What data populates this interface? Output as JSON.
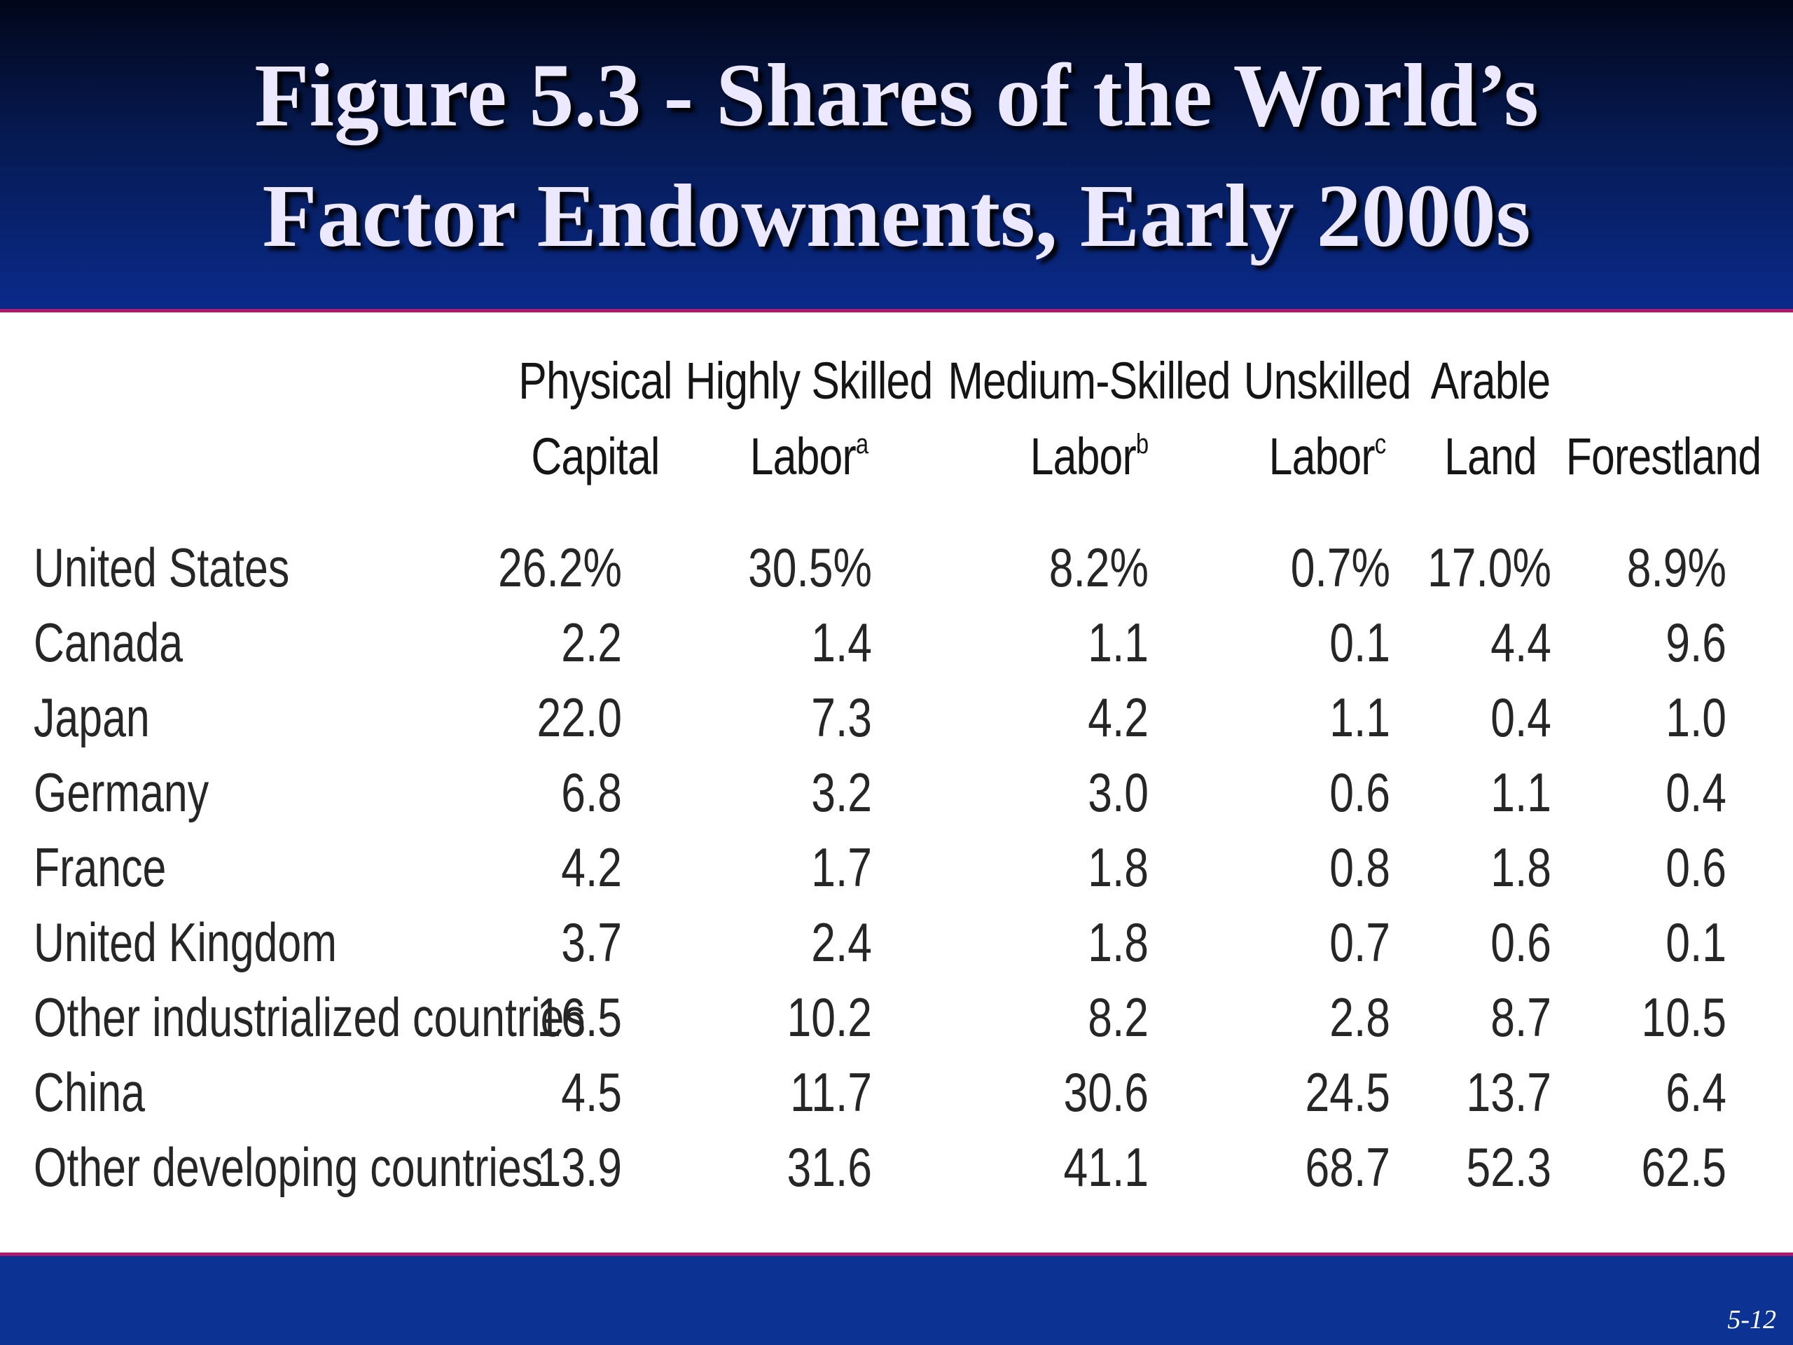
{
  "slide": {
    "title_line1": "Figure 5.3 - Shares of the World’s",
    "title_line2": "Factor Endowments, Early 2000s",
    "slide_number": "5-12"
  },
  "table": {
    "columns": [
      {
        "line1": "Physical",
        "line2": "Capital",
        "note": ""
      },
      {
        "line1": "Highly Skilled",
        "line2": "Labor",
        "note": "a"
      },
      {
        "line1": "Medium-Skilled",
        "line2": "Labor",
        "note": "b"
      },
      {
        "line1": "Unskilled",
        "line2": "Labor",
        "note": "c"
      },
      {
        "line1": "Arable",
        "line2": "Land",
        "note": ""
      },
      {
        "line1": "",
        "line2": "Forestland",
        "note": ""
      }
    ],
    "rows": [
      {
        "label": "United States",
        "values": [
          "26.2%",
          "30.5%",
          "8.2%",
          "0.7%",
          "17.0%",
          "8.9%"
        ]
      },
      {
        "label": "Canada",
        "values": [
          "2.2",
          "1.4",
          "1.1",
          "0.1",
          "4.4",
          "9.6"
        ]
      },
      {
        "label": "Japan",
        "values": [
          "22.0",
          "7.3",
          "4.2",
          "1.1",
          "0.4",
          "1.0"
        ]
      },
      {
        "label": "Germany",
        "values": [
          "6.8",
          "3.2",
          "3.0",
          "0.6",
          "1.1",
          "0.4"
        ]
      },
      {
        "label": "France",
        "values": [
          "4.2",
          "1.7",
          "1.8",
          "0.8",
          "1.8",
          "0.6"
        ]
      },
      {
        "label": "United Kingdom",
        "values": [
          "3.7",
          "2.4",
          "1.8",
          "0.7",
          "0.6",
          "0.1"
        ]
      },
      {
        "label": "Other industrialized countries",
        "values": [
          "16.5",
          "10.2",
          "8.2",
          "2.8",
          "8.7",
          "10.5"
        ]
      },
      {
        "label": "China",
        "values": [
          "4.5",
          "11.7",
          "30.6",
          "24.5",
          "13.7",
          "6.4"
        ]
      },
      {
        "label": "Other developing countries",
        "values": [
          "13.9",
          "31.6",
          "41.1",
          "68.7",
          "52.3",
          "62.5"
        ]
      }
    ]
  },
  "colors": {
    "header_top": "#02061a",
    "header_bottom": "#0a2a8a",
    "accent_line": "#b0186a",
    "footer": "#0c3394",
    "title_text": "#ece8ff",
    "body_text": "#262626"
  }
}
